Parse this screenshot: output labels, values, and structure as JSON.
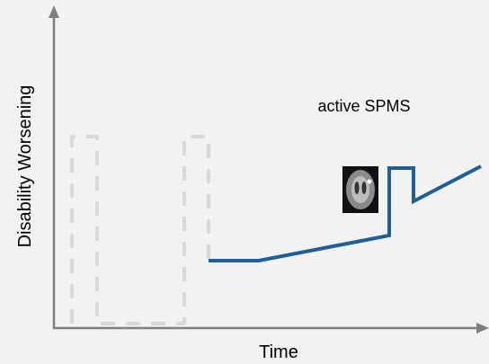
{
  "axes": {
    "y_label": "Disability Worsening",
    "x_label": "Time"
  },
  "annotation": "active SPMS"
}
